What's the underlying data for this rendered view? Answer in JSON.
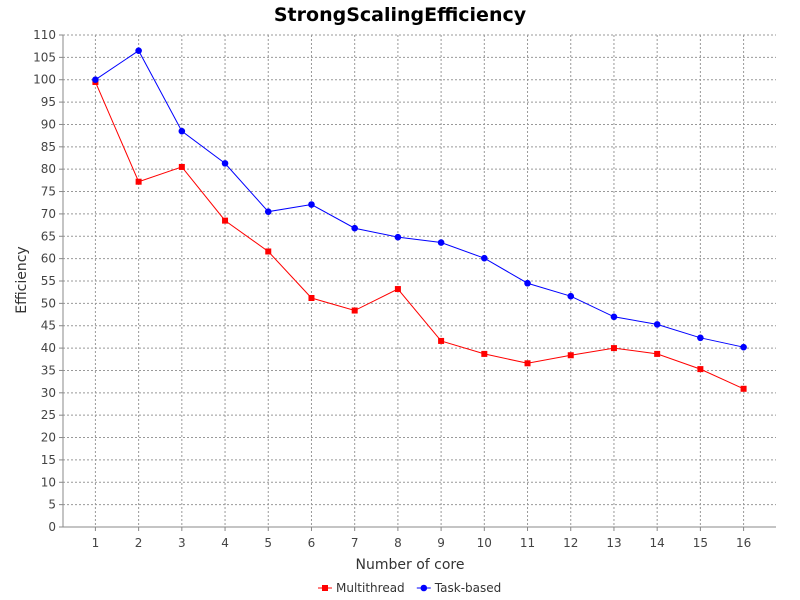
{
  "chart_data": {
    "type": "line",
    "title": "StrongScalingEfficiency",
    "xlabel": "Number of core",
    "ylabel": "Efficiency",
    "x": [
      1,
      2,
      3,
      4,
      5,
      6,
      7,
      8,
      9,
      10,
      11,
      12,
      13,
      14,
      15,
      16
    ],
    "xlim": [
      0.25,
      16.75
    ],
    "ylim": [
      0,
      110
    ],
    "y_ticks": [
      0,
      5,
      10,
      15,
      20,
      25,
      30,
      35,
      40,
      45,
      50,
      55,
      60,
      65,
      70,
      75,
      80,
      85,
      90,
      95,
      100,
      105,
      110
    ],
    "grid": true,
    "legend_position": "bottom-center",
    "series": [
      {
        "name": "Multithread",
        "color": "#ff0000",
        "marker": "square",
        "values": [
          99.5,
          77.2,
          80.5,
          68.5,
          61.6,
          51.2,
          48.4,
          53.2,
          41.6,
          38.7,
          36.6,
          38.4,
          40,
          38.7,
          35.3,
          30.9
        ]
      },
      {
        "name": "Task-based",
        "color": "#0000ff",
        "marker": "circle",
        "values": [
          100,
          106.5,
          88.5,
          81.3,
          70.5,
          72.1,
          66.8,
          64.8,
          63.6,
          60.1,
          54.5,
          51.6,
          47,
          45.3,
          42.3,
          40.2
        ]
      }
    ]
  }
}
